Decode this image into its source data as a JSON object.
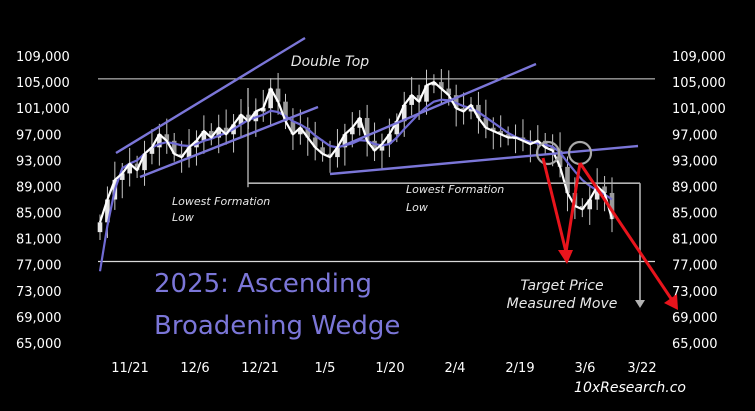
{
  "chart_data": {
    "type": "candlestick",
    "title_lines": [
      "2025: Ascending",
      "Broadening Wedge"
    ],
    "y_ticks": [
      "109,000",
      "105,000",
      "101,000",
      "97,000",
      "93,000",
      "89,000",
      "85,000",
      "81,000",
      "77,000",
      "73,000",
      "69,000",
      "65,000"
    ],
    "y_values": [
      109000,
      105000,
      101000,
      97000,
      93000,
      89000,
      85000,
      81000,
      77000,
      73000,
      69000,
      65000
    ],
    "ylim": [
      65000,
      109000
    ],
    "x_ticks": [
      "11/21",
      "12/6",
      "12/21",
      "1/5",
      "1/20",
      "2/4",
      "2/19",
      "3/6",
      "3/22"
    ],
    "series_close": [
      83500,
      87000,
      90000,
      91000,
      92500,
      91500,
      94000,
      95000,
      97000,
      96000,
      94000,
      93500,
      95000,
      96000,
      97500,
      96500,
      98000,
      97000,
      98500,
      100000,
      99000,
      100500,
      101000,
      104000,
      102000,
      99000,
      97000,
      98000,
      96500,
      95000,
      94000,
      93500,
      95000,
      97000,
      98000,
      99500,
      96000,
      94500,
      95500,
      97000,
      99000,
      101500,
      103000,
      102000,
      104500,
      105000,
      104000,
      103000,
      101000,
      100500,
      101500,
      99500,
      98000,
      97500,
      97000,
      96500,
      96500,
      96000,
      95500,
      96000,
      95000,
      94500,
      92000,
      88000,
      86000,
      85500,
      87000,
      89000,
      88000,
      84000
    ],
    "series_ma": [
      90000,
      90500,
      91000,
      91800,
      92500,
      93000,
      94000,
      95000,
      95500,
      95800,
      95600,
      95300,
      95200,
      95500,
      96000,
      96300,
      96800,
      97200,
      97800,
      98500,
      99200,
      99600,
      100000,
      100600,
      100400,
      99800,
      99000,
      98500,
      97800,
      96800,
      96000,
      95200,
      95000,
      95300,
      95600,
      96100,
      96000,
      95500,
      95300,
      95500,
      96500,
      97800,
      99000,
      100200,
      101200,
      102000,
      102300,
      102200,
      101800,
      101300,
      101000,
      100400,
      99600,
      98800,
      98000,
      97200,
      96600,
      96200,
      95800,
      95600,
      95400,
      95100,
      94200,
      92700,
      91300,
      90000,
      89100,
      88400,
      87800,
      87000
    ],
    "annotations": {
      "double_top": "Double Top",
      "lowest_1_line1": "Lowest Formation",
      "lowest_1_line2": "Low",
      "lowest_2_line1": "Lowest Formation",
      "lowest_2_line2": "Low",
      "target_line1": "Target Price",
      "target_line2": "Measured Move"
    },
    "levels": {
      "double_top_line": 105500,
      "formation_low": 89500,
      "bottom_line": 77500
    },
    "watermark": "10xResearch.co",
    "colors": {
      "background": "#000000",
      "candles": "#c8c8c8",
      "close_line": "#ffffff",
      "ma_line": "#6f6ad3",
      "trendline": "#7b76d8",
      "arrow": "#e8141c",
      "title": "#7b76d8"
    }
  }
}
